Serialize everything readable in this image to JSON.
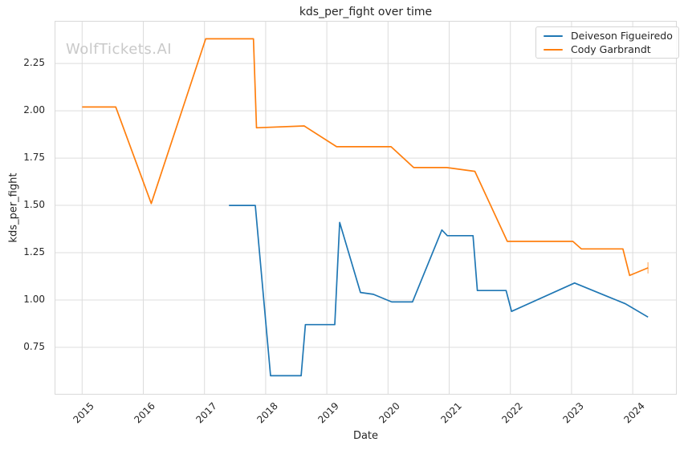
{
  "header": {
    "title": "kds_per_fight over time"
  },
  "watermark": {
    "text": "WolfTickets.AI"
  },
  "axes": {
    "xlabel": "Date",
    "ylabel": "kds_per_fight"
  },
  "colors": {
    "series_blue": "#1f77b4",
    "series_orange": "#ff7f0e",
    "grid": "#dcdcdc",
    "frame": "#d9d9d9"
  },
  "chart_data": {
    "type": "line",
    "title": "kds_per_fight over time",
    "xlabel": "Date",
    "ylabel": "kds_per_fight",
    "xlim": [
      2014.55,
      2024.72
    ],
    "ylim": [
      0.5,
      2.475
    ],
    "x_ticks": [
      2015,
      2016,
      2017,
      2018,
      2019,
      2020,
      2021,
      2022,
      2023,
      2024
    ],
    "x_tick_labels": [
      "2015",
      "2016",
      "2017",
      "2018",
      "2019",
      "2020",
      "2021",
      "2022",
      "2023",
      "2024"
    ],
    "y_ticks": [
      0.75,
      1.0,
      1.25,
      1.5,
      1.75,
      2.0,
      2.25
    ],
    "y_tick_labels": [
      "0.75",
      "1.00",
      "1.25",
      "1.50",
      "1.75",
      "2.00",
      "2.25"
    ],
    "grid": true,
    "legend_position": "upper right",
    "series": [
      {
        "name": "Deiveson Figueiredo",
        "color": "#1f77b4",
        "points": [
          [
            2017.4,
            1.5
          ],
          [
            2017.83,
            1.5
          ],
          [
            2018.08,
            0.6
          ],
          [
            2018.58,
            0.6
          ],
          [
            2018.65,
            0.87
          ],
          [
            2019.13,
            0.87
          ],
          [
            2019.21,
            1.41
          ],
          [
            2019.55,
            1.04
          ],
          [
            2019.76,
            1.03
          ],
          [
            2020.06,
            0.99
          ],
          [
            2020.4,
            0.99
          ],
          [
            2020.88,
            1.37
          ],
          [
            2020.97,
            1.34
          ],
          [
            2021.39,
            1.34
          ],
          [
            2021.46,
            1.05
          ],
          [
            2021.93,
            1.05
          ],
          [
            2022.02,
            0.94
          ],
          [
            2023.05,
            1.09
          ],
          [
            2023.88,
            0.98
          ],
          [
            2024.25,
            0.91
          ]
        ]
      },
      {
        "name": "Cody Garbrandt",
        "color": "#ff7f0e",
        "end_marker": "tick",
        "points": [
          [
            2015.0,
            2.02
          ],
          [
            2015.55,
            2.02
          ],
          [
            2016.13,
            1.51
          ],
          [
            2017.02,
            2.38
          ],
          [
            2017.8,
            2.38
          ],
          [
            2017.85,
            1.91
          ],
          [
            2018.63,
            1.92
          ],
          [
            2019.16,
            1.81
          ],
          [
            2020.05,
            1.81
          ],
          [
            2020.42,
            1.7
          ],
          [
            2020.96,
            1.7
          ],
          [
            2021.42,
            1.68
          ],
          [
            2021.95,
            1.31
          ],
          [
            2023.02,
            1.31
          ],
          [
            2023.16,
            1.27
          ],
          [
            2023.84,
            1.27
          ],
          [
            2023.95,
            1.13
          ],
          [
            2024.25,
            1.17
          ]
        ]
      }
    ]
  }
}
